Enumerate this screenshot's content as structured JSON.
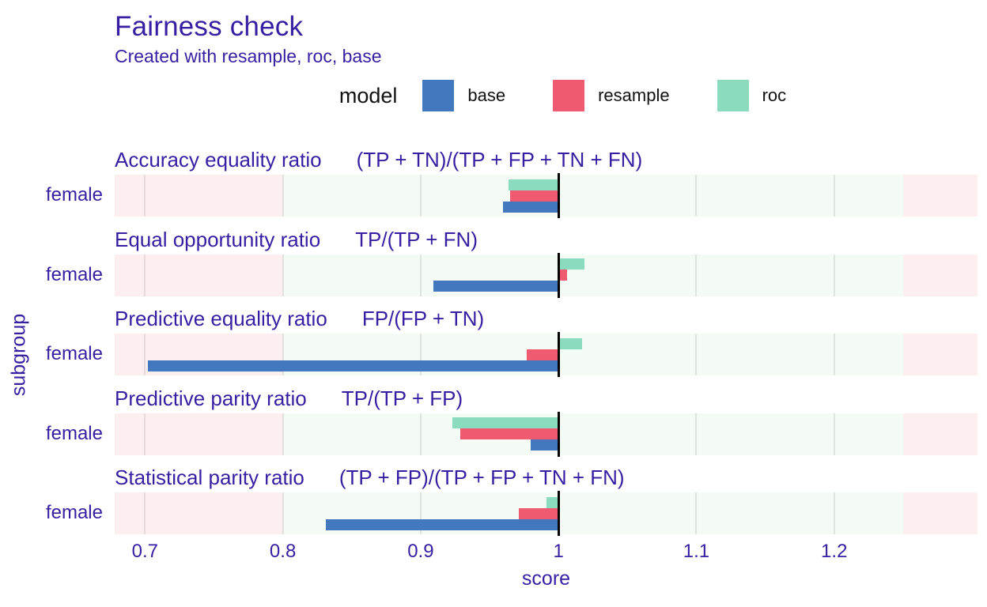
{
  "header": {
    "title": "Fairness check",
    "subtitle": "Created with resample, roc, base"
  },
  "legend": {
    "title": "model",
    "items": [
      {
        "label": "base",
        "color": "#4378bf"
      },
      {
        "label": "resample",
        "color": "#f05a71"
      },
      {
        "label": "roc",
        "color": "#8bdcbe"
      }
    ]
  },
  "axis": {
    "label": "score",
    "ticks": [
      "0.7",
      "0.8",
      "0.9",
      "1",
      "1.1",
      "1.2"
    ],
    "tick_values": [
      0.7,
      0.8,
      0.9,
      1.0,
      1.1,
      1.2
    ]
  },
  "y_axis": {
    "label": "subgroup",
    "group_label": "female"
  },
  "chart_data": {
    "type": "bar",
    "title": "Fairness check",
    "subtitle": "Created with resample, roc, base",
    "xlabel": "score",
    "ylabel": "subgroup",
    "subgroup": "female",
    "xlim": [
      0.678,
      1.304
    ],
    "reference_line": 1.0,
    "fair_zone": [
      0.8,
      1.25
    ],
    "zone_colors": {
      "ok": "#f3fbf4",
      "warn": "#fdeef0"
    },
    "series_order_top_to_bottom": [
      "roc",
      "resample",
      "base"
    ],
    "colors": {
      "base": "#4378bf",
      "resample": "#f05a71",
      "roc": "#8bdcbe",
      "accent": "#371ea3"
    },
    "panels": [
      {
        "metric": "Accuracy equality ratio",
        "formula": "(TP + TN)/(TP + FP + TN + FN)",
        "values": {
          "base": 0.96,
          "resample": 0.965,
          "roc": 0.964
        }
      },
      {
        "metric": "Equal opportunity ratio",
        "formula": "TP/(TP + FN)",
        "values": {
          "base": 0.909,
          "resample": 1.006,
          "roc": 1.019
        }
      },
      {
        "metric": "Predictive equality ratio",
        "formula": "FP/(FP + TN)",
        "values": {
          "base": 0.702,
          "resample": 0.977,
          "roc": 1.017
        }
      },
      {
        "metric": "Predictive parity ratio",
        "formula": "TP/(TP + FP)",
        "values": {
          "base": 0.98,
          "resample": 0.929,
          "roc": 0.923
        }
      },
      {
        "metric": "Statistical parity ratio",
        "formula": "(TP + FP)/(TP + FP + TN + FN)",
        "values": {
          "base": 0.831,
          "resample": 0.971,
          "roc": 0.991
        }
      }
    ]
  }
}
